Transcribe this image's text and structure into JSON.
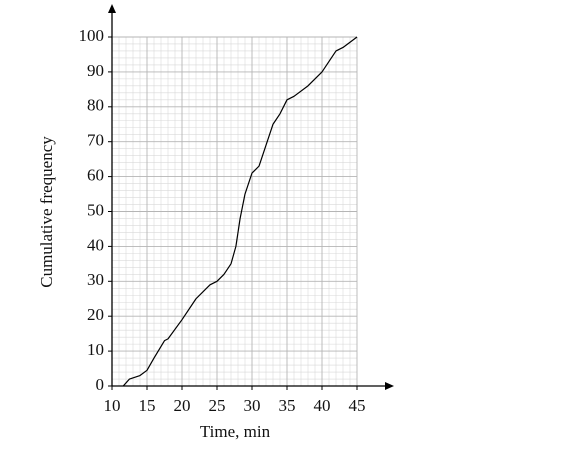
{
  "chart_data": {
    "type": "line",
    "xlabel": "Time, min",
    "ylabel": "Cumulative frequency",
    "x": [
      11.6,
      12.5,
      14,
      15,
      16,
      17.5,
      18,
      20,
      22,
      24,
      25,
      26,
      27,
      27.7,
      28.3,
      29,
      30,
      31,
      33,
      34,
      35,
      36,
      38,
      40,
      42,
      43,
      45
    ],
    "values": [
      0,
      2,
      3,
      4.5,
      8,
      13,
      13.5,
      19,
      25,
      29,
      30,
      32,
      35,
      40,
      48,
      55,
      61,
      63,
      75,
      78,
      82,
      83,
      86,
      90,
      96,
      97,
      100
    ],
    "color": "#000000",
    "xlim": [
      10,
      45
    ],
    "ylim": [
      0,
      100
    ],
    "xticks": [
      10,
      15,
      20,
      25,
      30,
      35,
      40,
      45
    ],
    "yticks": [
      0,
      10,
      20,
      30,
      40,
      50,
      60,
      70,
      80,
      90,
      100
    ],
    "grid": true
  }
}
